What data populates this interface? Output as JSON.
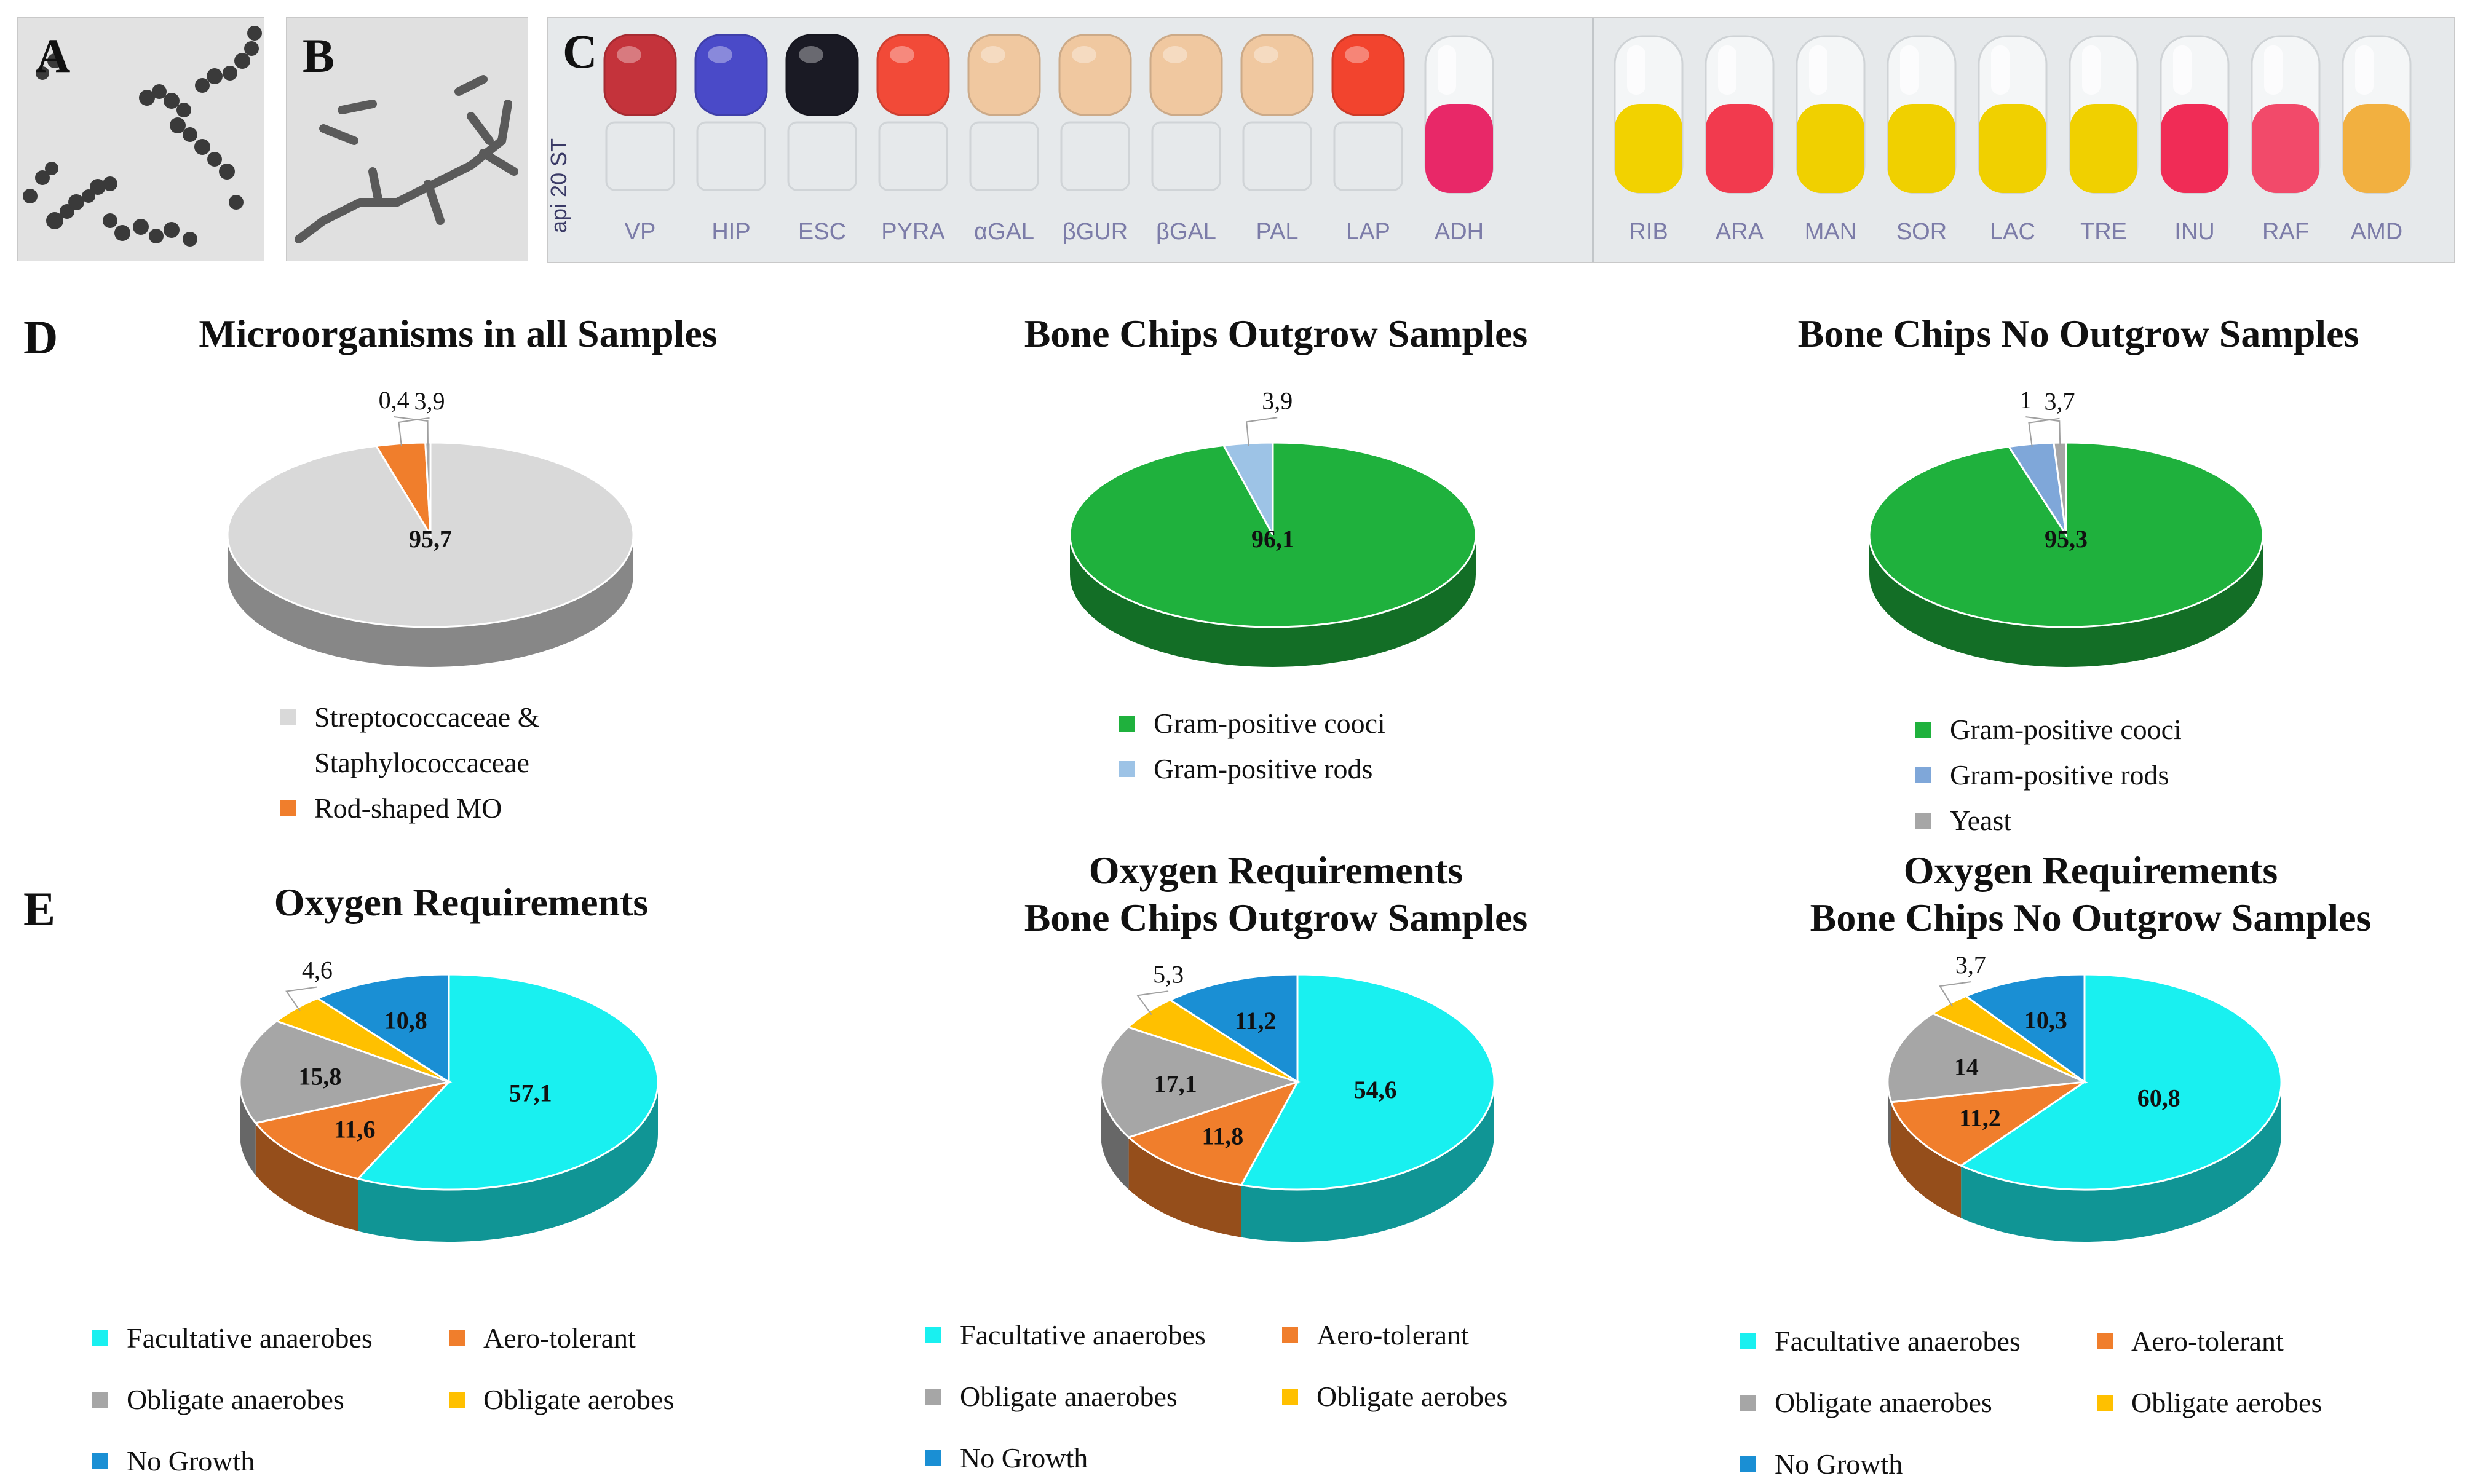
{
  "panels": {
    "A": "A",
    "B": "B",
    "C": "C",
    "D": "D",
    "E": "E"
  },
  "api_strip": {
    "brand": "api 20 ST",
    "tests": [
      {
        "label": "VP",
        "color": "#c4333b"
      },
      {
        "label": "HIP",
        "color": "#4a4ac8"
      },
      {
        "label": "ESC",
        "color": "#1a1a24"
      },
      {
        "label": "PYRA",
        "color": "#f24a38"
      },
      {
        "label": "αGAL",
        "color": "#f0c8a0"
      },
      {
        "label": "βGUR",
        "color": "#f0c8a0"
      },
      {
        "label": "βGAL",
        "color": "#f0c8a0"
      },
      {
        "label": "PAL",
        "color": "#f0c8a0"
      },
      {
        "label": "LAP",
        "color": "#f2442e"
      },
      {
        "label": "ADH",
        "color": "#e82868"
      },
      {
        "label": "RIB",
        "color": "#f2d200"
      },
      {
        "label": "ARA",
        "color": "#f23a4e"
      },
      {
        "label": "MAN",
        "color": "#f0d000"
      },
      {
        "label": "SOR",
        "color": "#f0d000"
      },
      {
        "label": "LAC",
        "color": "#f0d000"
      },
      {
        "label": "TRE",
        "color": "#f0d000"
      },
      {
        "label": "INU",
        "color": "#f02c56"
      },
      {
        "label": "RAF",
        "color": "#f24a6a"
      },
      {
        "label": "AMD",
        "color": "#f2b040"
      }
    ]
  },
  "chart_data": [
    {
      "type": "pie",
      "title": "Microorganisms in all Samples",
      "slices": [
        {
          "label": "Streptococcaceae & Staphylococcaceae",
          "value": 95.7,
          "display": "95,7",
          "color": "#d9d9d9"
        },
        {
          "label": "Rod-shaped MO",
          "value": 3.9,
          "display": "3,9",
          "color": "#f07e2c"
        },
        {
          "value": 0.4,
          "display": "0,4",
          "color": "#a6a6a6"
        }
      ],
      "legend": [
        {
          "text": "Streptococcaceae &",
          "color": "#d9d9d9"
        },
        {
          "text": "Staphylococcaceae",
          "color": null
        },
        {
          "text": "Rod-shaped MO",
          "color": "#f07e2c"
        }
      ]
    },
    {
      "type": "pie",
      "title": "Bone Chips Outgrow Samples",
      "slices": [
        {
          "label": "Gram-positive cooci",
          "value": 96.1,
          "display": "96,1",
          "color": "#1fb13d"
        },
        {
          "label": "Gram-positive rods",
          "value": 3.9,
          "display": "3,9",
          "color": "#9dc3e6"
        }
      ],
      "legend": [
        {
          "text": "Gram-positive cooci",
          "color": "#1fb13d"
        },
        {
          "text": "Gram-positive rods",
          "color": "#9dc3e6"
        }
      ]
    },
    {
      "type": "pie",
      "title": "Bone Chips No Outgrow Samples",
      "slices": [
        {
          "label": "Gram-positive cooci",
          "value": 95.3,
          "display": "95,3",
          "color": "#1fb13d"
        },
        {
          "label": "Gram-positive rods",
          "value": 3.7,
          "display": "3,7",
          "color": "#7fa7d9"
        },
        {
          "label": "Yeast",
          "value": 1,
          "display": "1",
          "color": "#a6a6a6"
        }
      ],
      "legend": [
        {
          "text": "Gram-positive cooci",
          "color": "#1fb13d"
        },
        {
          "text": "Gram-positive rods",
          "color": "#7fa7d9"
        },
        {
          "text": "Yeast",
          "color": "#a6a6a6"
        }
      ]
    },
    {
      "type": "pie",
      "title": "Oxygen Requirements",
      "slices": [
        {
          "label": "Facultative anaerobes",
          "value": 57.1,
          "display": "57,1",
          "color": "#19f0f0"
        },
        {
          "label": "Aero-tolerant",
          "value": 11.6,
          "display": "11,6",
          "color": "#f07e2c"
        },
        {
          "label": "Obligate anaerobes",
          "value": 15.8,
          "display": "15,8",
          "color": "#a6a6a6"
        },
        {
          "label": "Obligate aerobes",
          "value": 4.6,
          "display": "4,6",
          "color": "#ffc000"
        },
        {
          "label": "No Growth",
          "value": 10.8,
          "display": "10,8",
          "color": "#1a8fd4"
        }
      ],
      "legend": [
        {
          "text": "Facultative anaerobes",
          "color": "#19f0f0"
        },
        {
          "text": "Aero-tolerant",
          "color": "#f07e2c"
        },
        {
          "text": "Obligate anaerobes",
          "color": "#a6a6a6"
        },
        {
          "text": "Obligate aerobes",
          "color": "#ffc000"
        },
        {
          "text": "No Growth",
          "color": "#1a8fd4"
        }
      ]
    },
    {
      "type": "pie",
      "title": "Oxygen Requirements Bone Chips Outgrow Samples",
      "title_lines": [
        "Oxygen Requirements",
        "Bone Chips Outgrow Samples"
      ],
      "slices": [
        {
          "label": "Facultative anaerobes",
          "value": 54.6,
          "display": "54,6",
          "color": "#19f0f0"
        },
        {
          "label": "Aero-tolerant",
          "value": 11.8,
          "display": "11,8",
          "color": "#f07e2c"
        },
        {
          "label": "Obligate anaerobes",
          "value": 17.1,
          "display": "17,1",
          "color": "#a6a6a6"
        },
        {
          "label": "Obligate aerobes",
          "value": 5.3,
          "display": "5,3",
          "color": "#ffc000"
        },
        {
          "label": "No Growth",
          "value": 11.2,
          "display": "11,2",
          "color": "#1a8fd4"
        }
      ],
      "legend": [
        {
          "text": "Facultative anaerobes",
          "color": "#19f0f0"
        },
        {
          "text": "Aero-tolerant",
          "color": "#f07e2c"
        },
        {
          "text": "Obligate anaerobes",
          "color": "#a6a6a6"
        },
        {
          "text": "Obligate aerobes",
          "color": "#ffc000"
        },
        {
          "text": "No Growth",
          "color": "#1a8fd4"
        }
      ]
    },
    {
      "type": "pie",
      "title": "Oxygen Requirements Bone Chips No Outgrow Samples",
      "title_lines": [
        "Oxygen Requirements",
        "Bone Chips No Outgrow Samples"
      ],
      "slices": [
        {
          "label": "Facultative anaerobes",
          "value": 60.8,
          "display": "60,8",
          "color": "#19f0f0"
        },
        {
          "label": "Aero-tolerant",
          "value": 11.2,
          "display": "11,2",
          "color": "#f07e2c"
        },
        {
          "label": "Obligate anaerobes",
          "value": 14,
          "display": "14",
          "color": "#a6a6a6"
        },
        {
          "label": "Obligate aerobes",
          "value": 3.7,
          "display": "3,7",
          "color": "#ffc000"
        },
        {
          "label": "No Growth",
          "value": 10.3,
          "display": "10,3",
          "color": "#1a8fd4"
        }
      ],
      "legend": [
        {
          "text": "Facultative anaerobes",
          "color": "#19f0f0"
        },
        {
          "text": "Aero-tolerant",
          "color": "#f07e2c"
        },
        {
          "text": "Obligate anaerobes",
          "color": "#a6a6a6"
        },
        {
          "text": "Obligate aerobes",
          "color": "#ffc000"
        },
        {
          "text": "No Growth",
          "color": "#1a8fd4"
        }
      ]
    }
  ]
}
